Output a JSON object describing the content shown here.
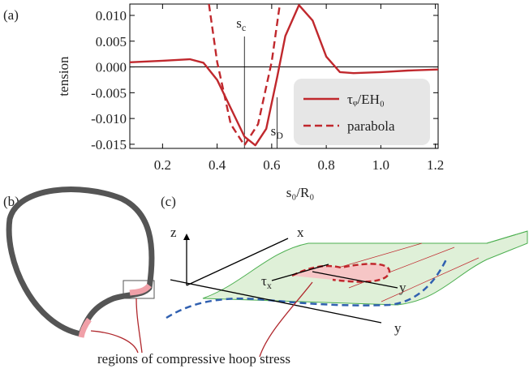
{
  "chart_data": {
    "type": "line",
    "xlabel": "s₀/R₀",
    "ylabel": "tension",
    "xlim": [
      0.08,
      1.21
    ],
    "ylim": [
      -0.0158,
      0.0122
    ],
    "xticks": [
      0.2,
      0.4,
      0.6,
      0.8,
      {
        "value": 1,
        "label": "1.0"
      },
      1.2
    ],
    "yticks": [
      {
        "value": 0.01,
        "label": "0.010"
      },
      {
        "value": 0.005,
        "label": "0.005"
      },
      {
        "value": 0,
        "label": "0.000"
      },
      {
        "value": -0.005,
        "label": "-0.005"
      },
      {
        "value": -0.01,
        "label": "-0.010"
      },
      {
        "value": -0.015,
        "label": "-0.015"
      }
    ],
    "series": [
      {
        "name": "τᵩ/EH₀",
        "color": "#c0282d",
        "dash": false,
        "x": [
          0.08,
          0.2,
          0.3,
          0.35,
          0.4,
          0.45,
          0.5,
          0.54,
          0.58,
          0.62,
          0.65,
          0.7,
          0.75,
          0.8,
          0.85,
          0.9,
          1.0,
          1.1,
          1.21
        ],
        "values": [
          0.0009,
          0.0012,
          0.0015,
          0.0008,
          -0.0025,
          -0.008,
          -0.0135,
          -0.0152,
          -0.012,
          -0.002,
          0.006,
          0.012,
          0.009,
          0.002,
          -0.001,
          -0.0012,
          -0.001,
          -0.0007,
          -0.0005
        ]
      },
      {
        "name": "parabola",
        "color": "#c0282d",
        "dash": true,
        "x": [
          0.37,
          0.4,
          0.45,
          0.5,
          0.55,
          0.6,
          0.63
        ],
        "values": [
          0.0122,
          0.001,
          -0.0111,
          -0.0152,
          -0.0111,
          0.001,
          0.0122
        ]
      }
    ],
    "markers": [
      {
        "x": 0.5,
        "base": "s",
        "sub": "c"
      },
      {
        "x": 0.62,
        "base": "s",
        "sub": "D"
      }
    ]
  },
  "panels": {
    "a": "(a)",
    "b": "(b)",
    "c": "(c)"
  },
  "diagram_c": {
    "z": "z",
    "x": "x",
    "y": "y",
    "y2": "y",
    "tau": {
      "base": "τ",
      "sub": "x"
    }
  },
  "caption": "regions of compressive hoop stress"
}
